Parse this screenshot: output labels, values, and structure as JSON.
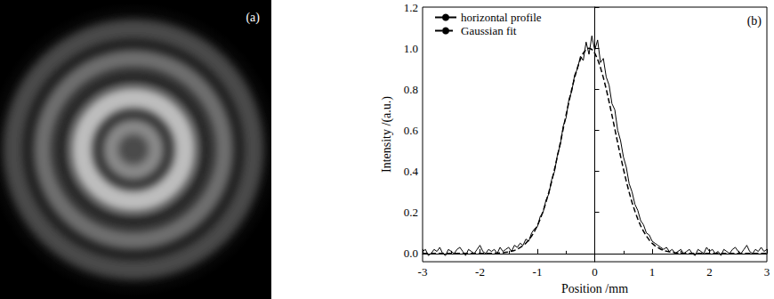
{
  "image": {
    "label": "(a)"
  },
  "chart_data": {
    "type": "line",
    "xlabel": "Position /mm",
    "ylabel": "Intensity /(a.u.)",
    "annotations": [
      {
        "text": "(b)"
      }
    ],
    "legend": "upper left",
    "grid": false,
    "xlim": [
      -3,
      3
    ],
    "xticks": [
      -3,
      -2,
      -1,
      0,
      1,
      2,
      3
    ],
    "ylim": [
      -0.04,
      1.2
    ],
    "yticks": [
      {
        "value": 0,
        "label": "0.0"
      },
      0.2,
      0.4,
      0.6,
      0.8,
      {
        "value": 1,
        "label": "1.0"
      },
      1.2
    ],
    "x": [
      -3.0,
      -2.95,
      -2.9,
      -2.85,
      -2.8,
      -2.75,
      -2.7,
      -2.65,
      -2.6,
      -2.55,
      -2.5,
      -2.45,
      -2.4,
      -2.35,
      -2.3,
      -2.25,
      -2.2,
      -2.15,
      -2.1,
      -2.05,
      -2.0,
      -1.95,
      -1.9,
      -1.85,
      -1.8,
      -1.75,
      -1.7,
      -1.65,
      -1.6,
      -1.55,
      -1.5,
      -1.45,
      -1.4,
      -1.35,
      -1.3,
      -1.25,
      -1.2,
      -1.15,
      -1.1,
      -1.05,
      -1.0,
      -0.95,
      -0.9,
      -0.85,
      -0.8,
      -0.75,
      -0.7,
      -0.65,
      -0.6,
      -0.55,
      -0.5,
      -0.45,
      -0.4,
      -0.35,
      -0.3,
      -0.25,
      -0.2,
      -0.15,
      -0.1,
      -0.05,
      0.0,
      0.05,
      0.1,
      0.15,
      0.2,
      0.25,
      0.3,
      0.35,
      0.4,
      0.45,
      0.5,
      0.55,
      0.6,
      0.65,
      0.7,
      0.75,
      0.8,
      0.85,
      0.9,
      0.95,
      1.0,
      1.05,
      1.1,
      1.15,
      1.2,
      1.25,
      1.3,
      1.35,
      1.4,
      1.45,
      1.5,
      1.55,
      1.6,
      1.65,
      1.7,
      1.75,
      1.8,
      1.85,
      1.9,
      1.95,
      2.0,
      2.05,
      2.1,
      2.15,
      2.2,
      2.25,
      2.3,
      2.35,
      2.4,
      2.45,
      2.5,
      2.55,
      2.6,
      2.65,
      2.7,
      2.75,
      2.8,
      2.85,
      2.9,
      2.95,
      3.0
    ],
    "series": [
      {
        "name": "horizontal profile",
        "color": "#000000",
        "line_style": "solid",
        "values": [
          0.01,
          0.02,
          -0.01,
          0.0,
          0.02,
          0.01,
          0.03,
          0.0,
          -0.01,
          0.02,
          0.01,
          0.0,
          0.02,
          0.03,
          0.01,
          -0.01,
          0.02,
          0.01,
          0.0,
          0.02,
          0.04,
          0.01,
          0.0,
          0.02,
          0.01,
          0.02,
          0.0,
          0.03,
          0.01,
          0.02,
          0.03,
          0.01,
          0.04,
          0.03,
          0.05,
          0.04,
          0.07,
          0.06,
          0.1,
          0.12,
          0.13,
          0.18,
          0.2,
          0.26,
          0.29,
          0.36,
          0.4,
          0.48,
          0.53,
          0.62,
          0.66,
          0.75,
          0.79,
          0.87,
          0.9,
          0.96,
          0.94,
          1.03,
          0.97,
          1.06,
          0.99,
          1.04,
          0.93,
          0.95,
          0.86,
          0.82,
          0.73,
          0.7,
          0.6,
          0.55,
          0.47,
          0.42,
          0.34,
          0.3,
          0.24,
          0.21,
          0.16,
          0.14,
          0.1,
          0.09,
          0.06,
          0.05,
          0.04,
          0.03,
          0.02,
          0.03,
          0.01,
          0.02,
          0.0,
          0.01,
          0.02,
          0.0,
          0.01,
          0.02,
          0.0,
          -0.01,
          0.02,
          0.01,
          0.0,
          0.03,
          0.01,
          0.02,
          0.0,
          0.01,
          -0.01,
          0.02,
          0.01,
          0.0,
          0.02,
          0.03,
          0.01,
          0.0,
          0.02,
          0.04,
          0.01,
          0.0,
          0.02,
          0.01,
          0.03,
          0.01,
          0.02
        ]
      },
      {
        "name": "Gaussian fit",
        "color": "#000000",
        "line_style": "dashed",
        "values": [
          0,
          0,
          0,
          0,
          0,
          0,
          0,
          0,
          0,
          0,
          0,
          0,
          0,
          0,
          0,
          0,
          0,
          0,
          0,
          0,
          0,
          0,
          0,
          0,
          0,
          0.001,
          0.002,
          0.003,
          0.004,
          0.006,
          0.008,
          0.011,
          0.015,
          0.021,
          0.029,
          0.038,
          0.05,
          0.066,
          0.085,
          0.108,
          0.135,
          0.168,
          0.206,
          0.249,
          0.298,
          0.352,
          0.411,
          0.474,
          0.539,
          0.607,
          0.674,
          0.739,
          0.801,
          0.857,
          0.906,
          0.946,
          0.976,
          0.994,
          1.0,
          0.994,
          0.976,
          0.946,
          0.906,
          0.857,
          0.801,
          0.739,
          0.674,
          0.607,
          0.539,
          0.474,
          0.411,
          0.352,
          0.298,
          0.249,
          0.206,
          0.168,
          0.135,
          0.108,
          0.085,
          0.066,
          0.05,
          0.038,
          0.029,
          0.021,
          0.015,
          0.011,
          0.008,
          0.006,
          0.004,
          0.003,
          0.002,
          0.001,
          0,
          0,
          0,
          0,
          0,
          0,
          0,
          0,
          0,
          0,
          0,
          0,
          0,
          0,
          0,
          0,
          0,
          0,
          0,
          0,
          0,
          0,
          0,
          0,
          0,
          0,
          0,
          0,
          0
        ]
      }
    ]
  }
}
